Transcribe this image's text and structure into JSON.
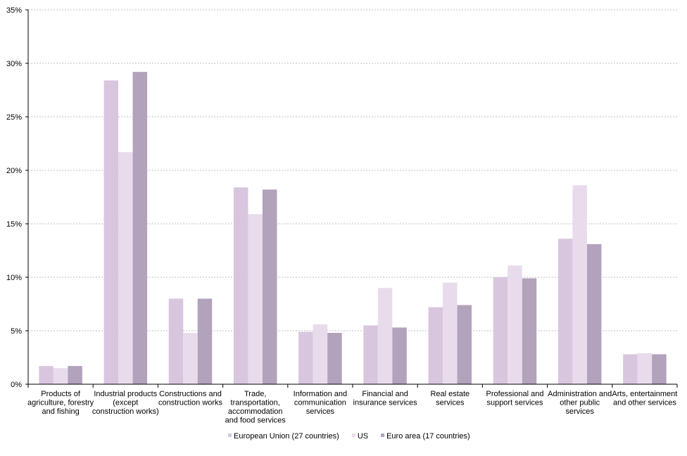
{
  "chart_data": {
    "type": "bar",
    "categories": [
      "Products of agriculture, forestry and fishing",
      "Industrial products (except construction works)",
      "Constructions and construction works",
      "Trade, transportation, accommodation and food services",
      "Information and communication services",
      "Financial and insurance services",
      "Real estate services",
      "Professional and support services",
      "Administration and other public services",
      "Arts, entertainment and other services"
    ],
    "category_label_lines": [
      [
        "Products of",
        "agriculture, forestry",
        "and fishing"
      ],
      [
        "Industrial products",
        "(except",
        "construction works)"
      ],
      [
        "Constructions and",
        "construction works"
      ],
      [
        "Trade,",
        "transportation,",
        "accommodation",
        "and food services"
      ],
      [
        "Information and",
        "communication",
        "services"
      ],
      [
        "Financial and",
        "insurance services"
      ],
      [
        "Real estate",
        "services"
      ],
      [
        "Professional and",
        "support services"
      ],
      [
        "Administration and",
        "other public",
        "services"
      ],
      [
        "Arts, entertainment",
        "and other services"
      ]
    ],
    "series": [
      {
        "name": "European Union (27 countries)",
        "color": "#d8c6de",
        "values": [
          1.7,
          28.4,
          8.0,
          18.4,
          4.9,
          5.5,
          7.2,
          10.0,
          13.6,
          2.8
        ]
      },
      {
        "name": "US",
        "color": "#e8dcec",
        "values": [
          1.5,
          21.7,
          4.8,
          15.9,
          5.6,
          9.0,
          9.5,
          11.1,
          18.6,
          2.9
        ]
      },
      {
        "name": "Euro area (17 countries)",
        "color": "#b2a2bc",
        "values": [
          1.7,
          29.2,
          8.0,
          18.2,
          4.8,
          5.3,
          7.4,
          9.9,
          13.1,
          2.8
        ]
      }
    ],
    "ylim": [
      0,
      35
    ],
    "yticks": [
      0,
      5,
      10,
      15,
      20,
      25,
      30,
      35
    ],
    "ytick_labels": [
      "0%",
      "5%",
      "10%",
      "15%",
      "20%",
      "25%",
      "30%",
      "35%"
    ],
    "grid": true,
    "legend_position": "bottom-center",
    "title": "",
    "xlabel": "",
    "ylabel": ""
  }
}
